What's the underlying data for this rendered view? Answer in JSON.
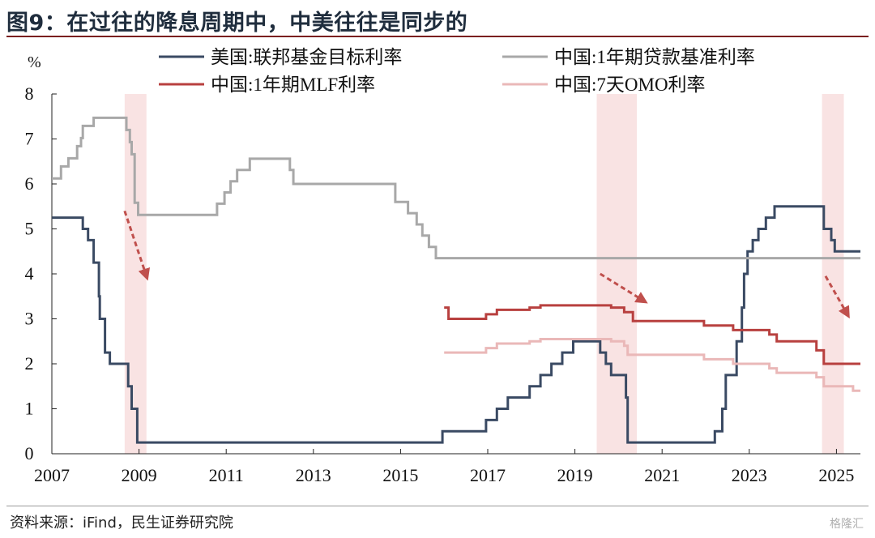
{
  "title": "图9：在过往的降息周期中，中美往往是同步的",
  "source": "资料来源：iFind，民生证券研究院",
  "watermark": "格隆汇",
  "chart_data": {
    "type": "line",
    "ylabel": "%",
    "xlim": [
      2007,
      2025.55
    ],
    "ylim": [
      0,
      8
    ],
    "x_ticks": [
      "2007",
      "2009",
      "2011",
      "2013",
      "2015",
      "2017",
      "2019",
      "2021",
      "2023",
      "2025"
    ],
    "y_ticks": [
      "0",
      "1",
      "2",
      "3",
      "4",
      "5",
      "6",
      "7",
      "8"
    ],
    "legend_placement": "top",
    "shaded_periods": [
      [
        2008.67,
        2009.17
      ],
      [
        2019.5,
        2020.42
      ],
      [
        2024.67,
        2025.17
      ]
    ],
    "arrows": [
      {
        "from": [
          2008.67,
          5.4
        ],
        "to": [
          2009.17,
          3.95
        ]
      },
      {
        "from": [
          2019.58,
          4.0
        ],
        "to": [
          2020.58,
          3.4
        ]
      },
      {
        "from": [
          2024.75,
          3.95
        ],
        "to": [
          2025.25,
          3.1
        ]
      }
    ],
    "series": [
      {
        "name": "美国:联邦基金目标利率",
        "color": "#3a4a63",
        "step": true,
        "points": [
          [
            2007.0,
            5.25
          ],
          [
            2007.71,
            5.0
          ],
          [
            2007.83,
            4.75
          ],
          [
            2007.96,
            4.25
          ],
          [
            2008.08,
            3.5
          ],
          [
            2008.1,
            3.0
          ],
          [
            2008.22,
            2.25
          ],
          [
            2008.33,
            2.0
          ],
          [
            2008.75,
            1.5
          ],
          [
            2008.83,
            1.0
          ],
          [
            2008.96,
            0.25
          ],
          [
            2015.96,
            0.5
          ],
          [
            2016.96,
            0.75
          ],
          [
            2017.21,
            1.0
          ],
          [
            2017.46,
            1.25
          ],
          [
            2017.96,
            1.5
          ],
          [
            2018.21,
            1.75
          ],
          [
            2018.46,
            2.0
          ],
          [
            2018.71,
            2.25
          ],
          [
            2018.96,
            2.5
          ],
          [
            2019.58,
            2.25
          ],
          [
            2019.71,
            2.0
          ],
          [
            2019.83,
            1.75
          ],
          [
            2020.17,
            1.25
          ],
          [
            2020.21,
            0.25
          ],
          [
            2022.21,
            0.5
          ],
          [
            2022.38,
            1.0
          ],
          [
            2022.46,
            1.75
          ],
          [
            2022.71,
            2.5
          ],
          [
            2022.83,
            3.25
          ],
          [
            2022.88,
            4.0
          ],
          [
            2022.96,
            4.5
          ],
          [
            2023.08,
            4.75
          ],
          [
            2023.21,
            5.0
          ],
          [
            2023.38,
            5.25
          ],
          [
            2023.58,
            5.5
          ],
          [
            2024.71,
            5.0
          ],
          [
            2024.88,
            4.75
          ],
          [
            2024.96,
            4.5
          ],
          [
            2025.55,
            4.5
          ]
        ]
      },
      {
        "name": "中国:1年期贷款基准利率",
        "color": "#a8a8a8",
        "step": true,
        "points": [
          [
            2007.0,
            6.12
          ],
          [
            2007.21,
            6.39
          ],
          [
            2007.38,
            6.57
          ],
          [
            2007.58,
            6.84
          ],
          [
            2007.67,
            7.02
          ],
          [
            2007.71,
            7.29
          ],
          [
            2007.96,
            7.47
          ],
          [
            2008.71,
            7.2
          ],
          [
            2008.79,
            6.93
          ],
          [
            2008.83,
            6.66
          ],
          [
            2008.9,
            5.58
          ],
          [
            2008.98,
            5.31
          ],
          [
            2010.79,
            5.56
          ],
          [
            2010.96,
            5.81
          ],
          [
            2011.1,
            6.06
          ],
          [
            2011.25,
            6.31
          ],
          [
            2011.54,
            6.56
          ],
          [
            2012.46,
            6.31
          ],
          [
            2012.54,
            6.0
          ],
          [
            2014.88,
            5.6
          ],
          [
            2015.17,
            5.35
          ],
          [
            2015.37,
            5.1
          ],
          [
            2015.5,
            4.85
          ],
          [
            2015.65,
            4.6
          ],
          [
            2015.81,
            4.35
          ],
          [
            2025.55,
            4.35
          ]
        ]
      },
      {
        "name": "中国:1年期MLF利率",
        "color": "#b8403f",
        "step": true,
        "points": [
          [
            2016.0,
            3.25
          ],
          [
            2016.1,
            3.0
          ],
          [
            2016.96,
            3.1
          ],
          [
            2017.21,
            3.2
          ],
          [
            2017.96,
            3.25
          ],
          [
            2018.21,
            3.3
          ],
          [
            2019.83,
            3.25
          ],
          [
            2020.13,
            3.15
          ],
          [
            2020.33,
            2.95
          ],
          [
            2021.96,
            2.85
          ],
          [
            2022.63,
            2.75
          ],
          [
            2023.46,
            2.65
          ],
          [
            2023.63,
            2.5
          ],
          [
            2024.54,
            2.3
          ],
          [
            2024.71,
            2.0
          ],
          [
            2025.55,
            2.0
          ]
        ]
      },
      {
        "name": "中国:7天OMO利率",
        "color": "#eab8b8",
        "step": true,
        "points": [
          [
            2016.0,
            2.25
          ],
          [
            2016.96,
            2.35
          ],
          [
            2017.21,
            2.45
          ],
          [
            2017.96,
            2.5
          ],
          [
            2018.21,
            2.55
          ],
          [
            2019.83,
            2.5
          ],
          [
            2020.13,
            2.4
          ],
          [
            2020.21,
            2.2
          ],
          [
            2021.96,
            2.1
          ],
          [
            2022.63,
            2.0
          ],
          [
            2023.46,
            1.9
          ],
          [
            2023.63,
            1.8
          ],
          [
            2024.54,
            1.7
          ],
          [
            2024.71,
            1.5
          ],
          [
            2025.38,
            1.4
          ],
          [
            2025.55,
            1.4
          ]
        ]
      }
    ]
  }
}
